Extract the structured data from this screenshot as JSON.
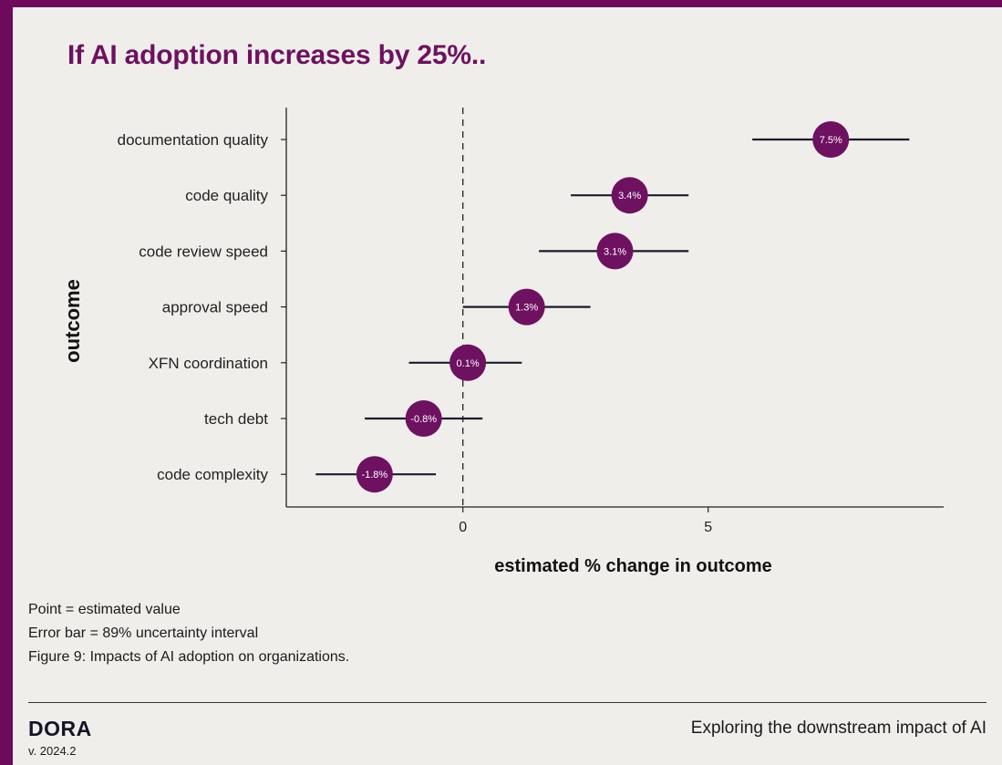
{
  "page": {
    "title": "If AI adoption increases by 25%..",
    "notes": [
      "Point = estimated value",
      "Error bar = 89% uncertainty interval",
      "Figure 9: Impacts of AI adoption on organizations."
    ],
    "footer": {
      "brand": "DORA",
      "version": "v. 2024.2",
      "caption": "Exploring the downstream impact of AI"
    }
  },
  "colors": {
    "accent": "#6e1160",
    "frame": "#6e0a5c",
    "background": "#f0eeeb",
    "ink": "#1a1a1a"
  },
  "chart_data": {
    "type": "scatter",
    "title": "If AI adoption increases by 25%..",
    "xlabel": "estimated % change in outcome",
    "ylabel": "outcome",
    "xlim": [
      -3.6,
      9.8
    ],
    "xticks": [
      0,
      5
    ],
    "reference_line": 0,
    "grid": false,
    "legend": "none",
    "categories": [
      "documentation quality",
      "code quality",
      "code review speed",
      "approval speed",
      "XFN coordination",
      "tech debt",
      "code complexity"
    ],
    "points": [
      {
        "category": "documentation quality",
        "estimate": 7.5,
        "low": 5.9,
        "high": 9.1,
        "label": "7.5%"
      },
      {
        "category": "code quality",
        "estimate": 3.4,
        "low": 2.2,
        "high": 4.6,
        "label": "3.4%"
      },
      {
        "category": "code review speed",
        "estimate": 3.1,
        "low": 1.55,
        "high": 4.6,
        "label": "3.1%"
      },
      {
        "category": "approval speed",
        "estimate": 1.3,
        "low": 0.0,
        "high": 2.6,
        "label": "1.3%"
      },
      {
        "category": "XFN coordination",
        "estimate": 0.1,
        "low": -1.1,
        "high": 1.2,
        "label": "0.1%"
      },
      {
        "category": "tech debt",
        "estimate": -0.8,
        "low": -2.0,
        "high": 0.4,
        "label": "-0.8%"
      },
      {
        "category": "code complexity",
        "estimate": -1.8,
        "low": -3.0,
        "high": -0.55,
        "label": "-1.8%"
      }
    ]
  }
}
